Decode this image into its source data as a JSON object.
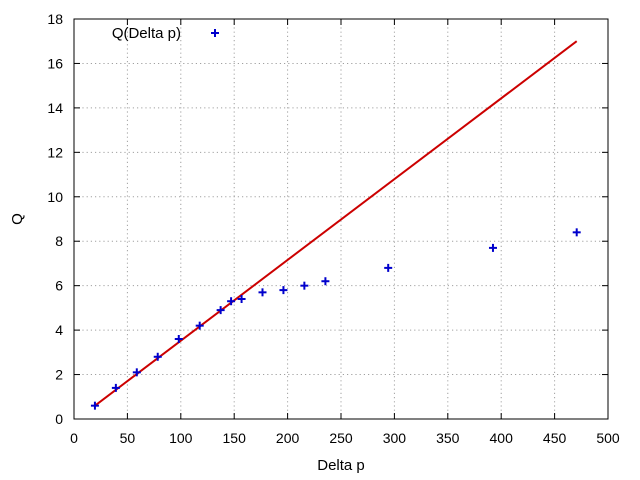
{
  "chart_data": {
    "type": "scatter",
    "xlabel": "Delta p",
    "ylabel": "Q",
    "xlim": [
      0,
      500
    ],
    "ylim": [
      0,
      18
    ],
    "x_ticks": [
      0,
      50,
      100,
      150,
      200,
      250,
      300,
      350,
      400,
      450,
      500
    ],
    "y_ticks": [
      0,
      2,
      4,
      6,
      8,
      10,
      12,
      14,
      16,
      18
    ],
    "grid": true,
    "legend_position": "top-left",
    "series": [
      {
        "name": "Q(Delta p)",
        "kind": "points",
        "marker": "plus",
        "color": "#0000cc",
        "x": [
          19.6,
          39.2,
          58.8,
          78.4,
          98.1,
          117.7,
          137.3,
          147.1,
          156.9,
          176.5,
          196.1,
          215.7,
          235.4,
          294.2,
          392.3,
          470.7
        ],
        "y": [
          0.6,
          1.4,
          2.1,
          2.8,
          3.6,
          4.2,
          4.9,
          5.3,
          5.4,
          5.7,
          5.8,
          6.0,
          6.2,
          6.8,
          7.7,
          8.4
        ]
      },
      {
        "kind": "line",
        "color": "#cc0000",
        "x": [
          19.6,
          470.7
        ],
        "y": [
          0.6,
          17.0
        ]
      }
    ]
  }
}
